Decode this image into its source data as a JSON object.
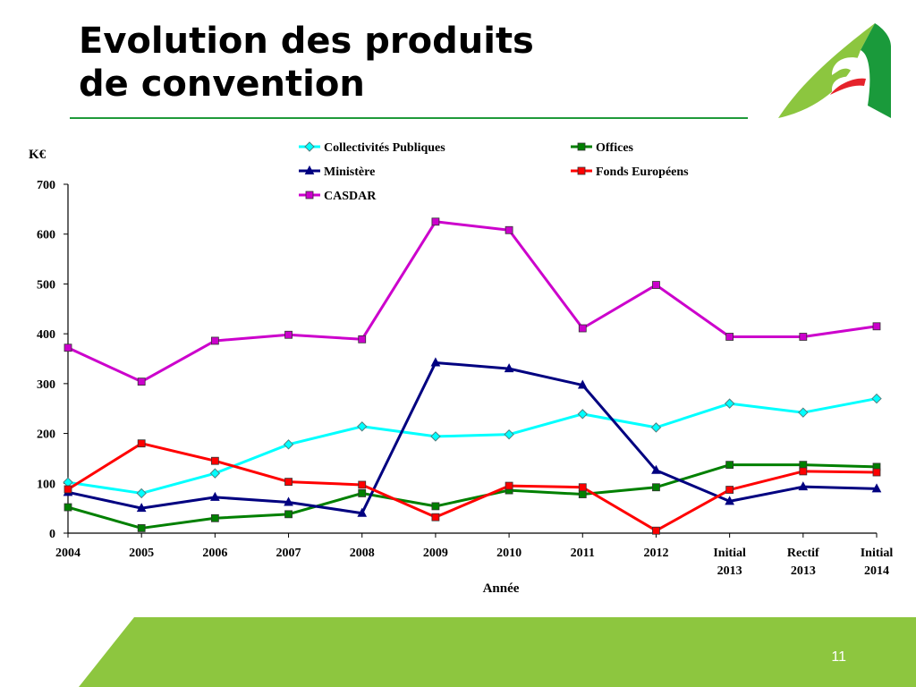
{
  "slide": {
    "title_line1": "Evolution des produits",
    "title_line2": "de convention",
    "page_number": "11"
  },
  "colors": {
    "accent_green": "#1f9a3a",
    "footer_green": "#8dc63f",
    "logo_green_light": "#8cc63f",
    "logo_green_dark": "#1a9a3b",
    "logo_red": "#e5232b"
  },
  "chart_data": {
    "type": "line",
    "title": "",
    "xlabel": "Année",
    "ylabel": "K€",
    "ylim": [
      0,
      700
    ],
    "yticks": [
      0,
      100,
      200,
      300,
      400,
      500,
      600,
      700
    ],
    "grid": false,
    "legend_position": "top",
    "categories": [
      "2004",
      "2005",
      "2006",
      "2007",
      "2008",
      "2009",
      "2010",
      "2011",
      "2012",
      "Initial 2013",
      "Rectif 2013",
      "Initial 2014"
    ],
    "series": [
      {
        "name": "Collectivités Publiques",
        "color": "#00ffff",
        "marker": "diamond",
        "values": [
          102,
          80,
          120,
          178,
          214,
          194,
          198,
          239,
          212,
          260,
          242,
          270
        ]
      },
      {
        "name": "Offices",
        "color": "#008000",
        "marker": "square",
        "values": [
          52,
          10,
          30,
          38,
          80,
          54,
          86,
          78,
          92,
          137,
          137,
          133
        ]
      },
      {
        "name": "Ministère",
        "color": "#000080",
        "marker": "triangle",
        "values": [
          82,
          50,
          72,
          62,
          40,
          342,
          330,
          297,
          126,
          64,
          93,
          89
        ]
      },
      {
        "name": "Fonds Européens",
        "color": "#ff0000",
        "marker": "square",
        "values": [
          88,
          180,
          145,
          103,
          97,
          32,
          95,
          92,
          5,
          87,
          124,
          122
        ]
      },
      {
        "name": "CASDAR",
        "color": "#cc00cc",
        "marker": "square",
        "values": [
          372,
          304,
          386,
          398,
          389,
          625,
          608,
          411,
          498,
          394,
          394,
          415
        ]
      }
    ]
  }
}
